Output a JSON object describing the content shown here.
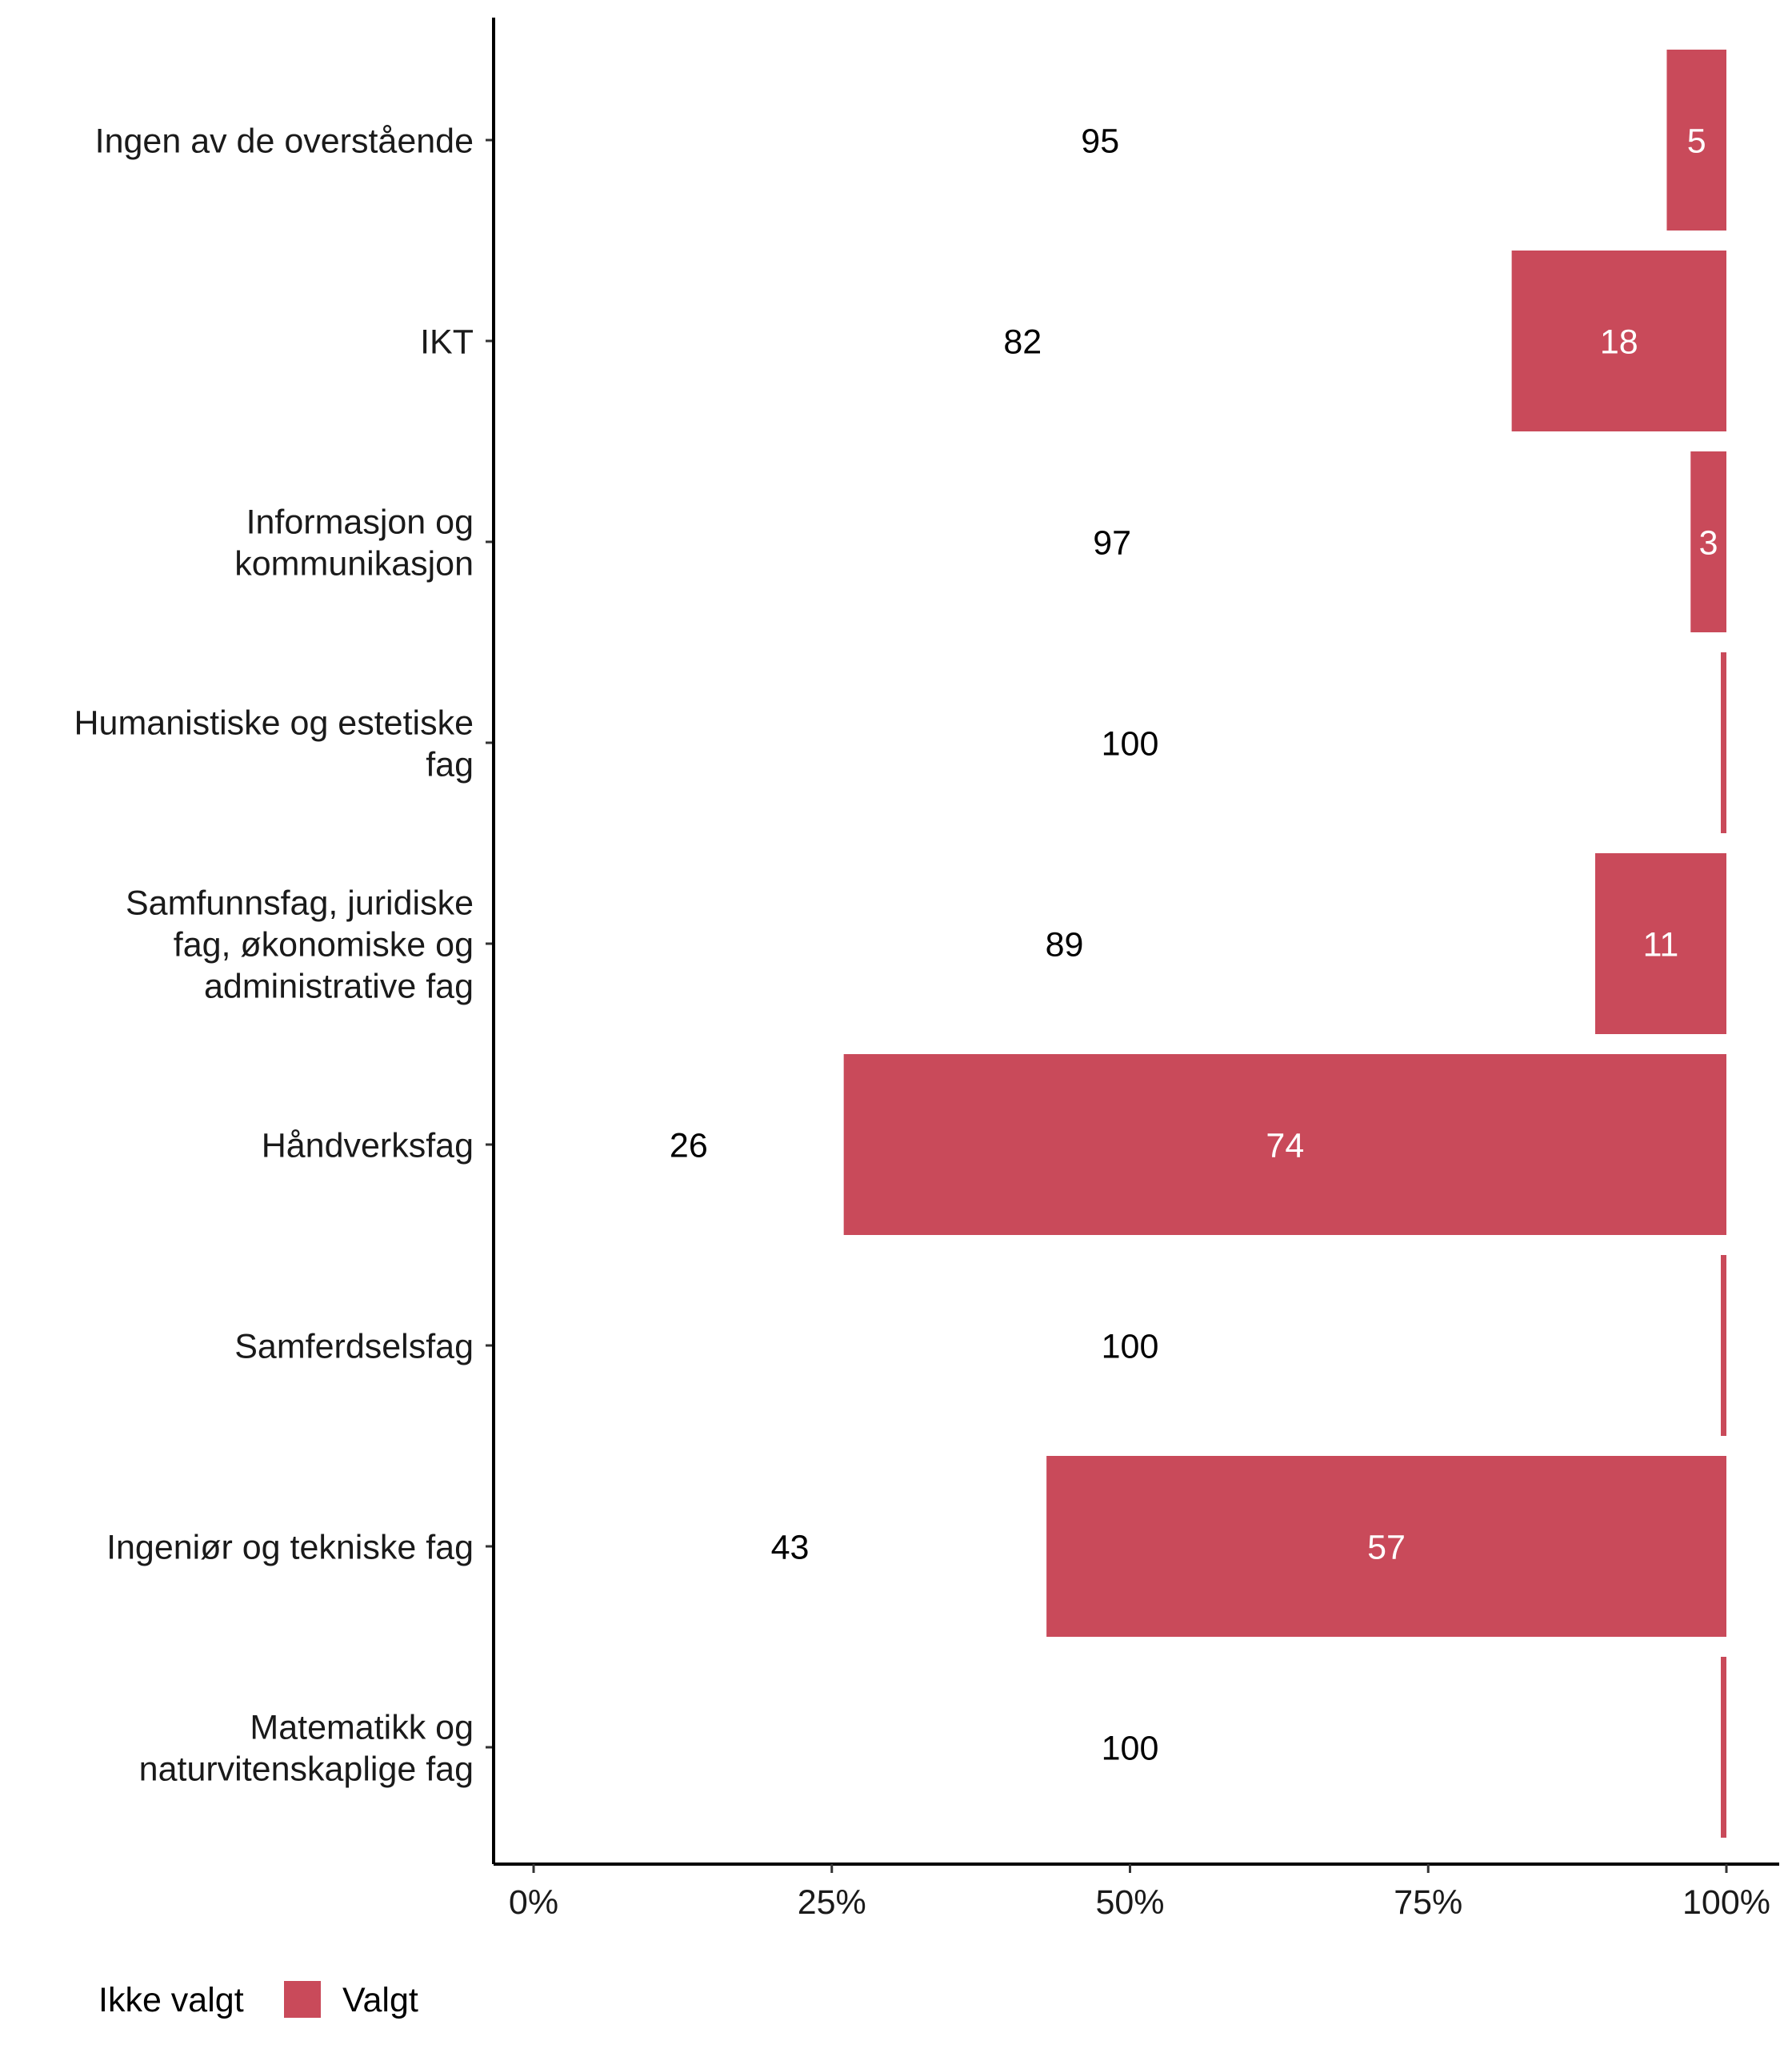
{
  "chart_data": {
    "type": "bar",
    "orientation": "horizontal",
    "stacked": true,
    "normalized": true,
    "categories": [
      [
        "Ingen av de overstående"
      ],
      [
        "IKT"
      ],
      [
        "Informasjon og",
        "kommunikasjon"
      ],
      [
        "Humanistiske og estetiske",
        "fag"
      ],
      [
        "Samfunnsfag, juridiske",
        "fag, økonomiske og",
        "administrative fag"
      ],
      [
        "Håndverksfag"
      ],
      [
        "Samferdselsfag"
      ],
      [
        "Ingeniør og tekniske fag"
      ],
      [
        "Matematikk og",
        "naturvitenskaplige fag"
      ]
    ],
    "series": [
      {
        "name": "Ikke valgt",
        "color": "#ffffff",
        "values": [
          95,
          82,
          97,
          100,
          89,
          26,
          100,
          43,
          100
        ]
      },
      {
        "name": "Valgt",
        "color": "#c94a5a",
        "values": [
          5,
          18,
          3,
          0,
          11,
          74,
          0,
          57,
          0
        ]
      }
    ],
    "xlim": [
      0,
      100
    ],
    "x_ticks": [
      "0%",
      "25%",
      "50%",
      "75%",
      "100%"
    ],
    "grid": false,
    "legend_position": "bottom-left"
  }
}
